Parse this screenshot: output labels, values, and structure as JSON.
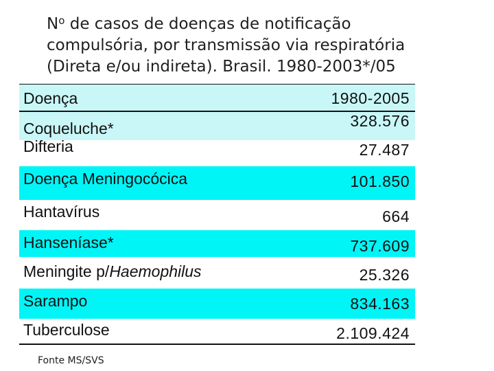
{
  "title": {
    "sup": "o",
    "n": "N",
    "line1_rest": " de casos de doenças de notificação",
    "line2": "compulsória,  por transmissão via  respiratória",
    "line3": "(Direta e/ou indireta). Brasil. 1980-2003*/05"
  },
  "table": {
    "header": {
      "label": "Doença",
      "value": "1980-2005"
    },
    "rows": [
      {
        "label": "Coqueluche*",
        "value": "328.576"
      },
      {
        "label": "Difteria",
        "value": "27.487"
      },
      {
        "label": "Doença Meningocócica",
        "value": "101.850"
      },
      {
        "label": "Hantavírus",
        "value": "664"
      },
      {
        "label": "Hanseníase*",
        "value": "737.609"
      },
      {
        "label_prefix": "Meningite p/",
        "label_italic": "Haemophilus",
        "value": "25.326"
      },
      {
        "label": "Sarampo",
        "value": "834.163"
      },
      {
        "label": "Tuberculose",
        "value": "2.109.424"
      }
    ]
  },
  "source": "Fonte MS/SVS",
  "colors": {
    "cyan": "#00f5f7",
    "light_cyan": "#c9f7f7"
  }
}
